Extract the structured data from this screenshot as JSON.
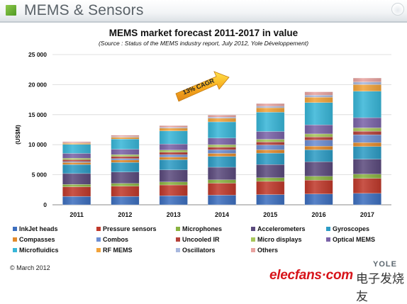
{
  "header": {
    "title": "MEMS & Sensors"
  },
  "footer": {
    "copyright": "© March 2012",
    "watermark": "elecfans·com",
    "watermark_cn": "电子发烧友",
    "brand": "YOLE"
  },
  "chart_data": {
    "type": "bar",
    "stacked": true,
    "title": "MEMS market forecast 2011-2017 in value",
    "subtitle": "(Source : Status of the MEMS industry report, July 2012, Yole Développement)",
    "ylabel": "(US$M)",
    "ylim": [
      0,
      25000
    ],
    "yticks": [
      0,
      5000,
      10000,
      15000,
      20000,
      25000
    ],
    "ytick_labels": [
      "0",
      "5 000",
      "10 000",
      "15 000",
      "20 000",
      "25 000"
    ],
    "grid": true,
    "legend_position": "bottom",
    "annotation": {
      "text": "13% CAGR",
      "shape": "arrow"
    },
    "categories": [
      "2011",
      "2012",
      "2013",
      "2014",
      "2015",
      "2016",
      "2017"
    ],
    "series": [
      {
        "name": "InkJet heads",
        "color": "#3d6fbf",
        "values": [
          1400,
          1400,
          1500,
          1600,
          1700,
          1800,
          1900
        ]
      },
      {
        "name": "Pressure sensors",
        "color": "#c0392b",
        "values": [
          1600,
          1700,
          1800,
          2000,
          2200,
          2300,
          2500
        ]
      },
      {
        "name": "Microphones",
        "color": "#8ab340",
        "values": [
          400,
          450,
          500,
          550,
          600,
          650,
          700
        ]
      },
      {
        "name": "Accelerometers",
        "color": "#5b4a7d",
        "values": [
          1800,
          1900,
          2000,
          2100,
          2200,
          2400,
          2500
        ]
      },
      {
        "name": "Gyroscopes",
        "color": "#2d9cc5",
        "values": [
          1500,
          1600,
          1700,
          1800,
          1900,
          2000,
          2100
        ]
      },
      {
        "name": "Compasses",
        "color": "#e28a2b",
        "values": [
          350,
          400,
          450,
          500,
          550,
          600,
          650
        ]
      },
      {
        "name": "Combos",
        "color": "#6c8ed3",
        "values": [
          150,
          250,
          400,
          600,
          800,
          1000,
          1300
        ]
      },
      {
        "name": "Uncooled IR",
        "color": "#b5413a",
        "values": [
          300,
          350,
          400,
          450,
          500,
          550,
          600
        ]
      },
      {
        "name": "Micro displays",
        "color": "#a7c65a",
        "values": [
          250,
          300,
          350,
          400,
          450,
          500,
          550
        ]
      },
      {
        "name": "Optical MEMS",
        "color": "#7a63a8",
        "values": [
          800,
          900,
          1000,
          1100,
          1300,
          1500,
          1700
        ]
      },
      {
        "name": "Microfluidics",
        "color": "#38b6d8",
        "values": [
          1500,
          1700,
          2200,
          2700,
          3200,
          3700,
          4400
        ]
      },
      {
        "name": "RF MEMS",
        "color": "#f2a33a",
        "values": [
          200,
          300,
          450,
          600,
          750,
          900,
          1100
        ]
      },
      {
        "name": "Oscillators",
        "color": "#a8b8de",
        "values": [
          50,
          80,
          120,
          180,
          250,
          350,
          450
        ]
      },
      {
        "name": "Others",
        "color": "#e8a3a0",
        "values": [
          200,
          250,
          300,
          350,
          450,
          550,
          650
        ]
      }
    ]
  }
}
